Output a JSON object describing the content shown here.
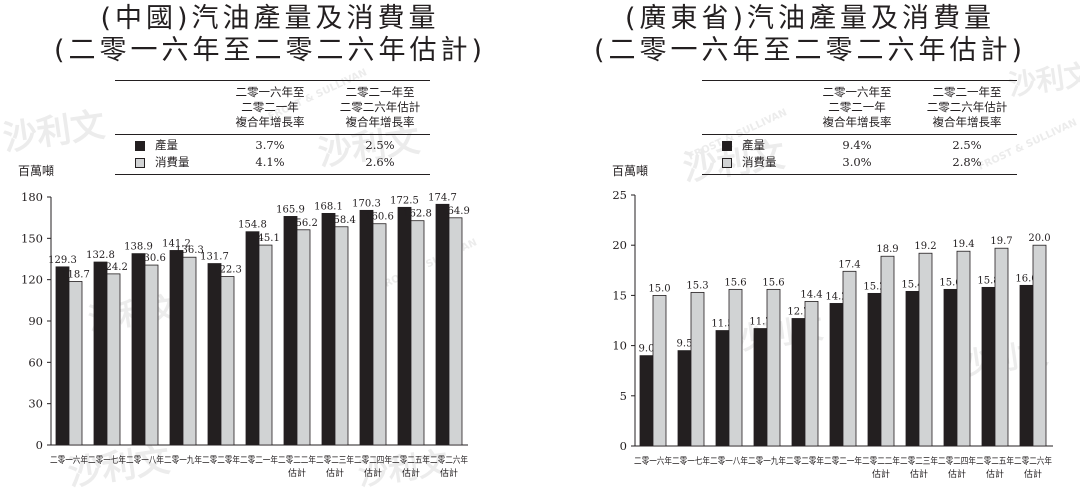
{
  "charts": [
    {
      "title_lines": [
        "(中國)汽油產量及消費量",
        "(二零一六年至二零二六年估計)"
      ],
      "legend_headers": [
        [
          "二零一六年至",
          "二零二一年",
          "複合年增長率"
        ],
        [
          "二零二一年至",
          "二零二六年估計",
          "複合年增長率"
        ]
      ],
      "legend_rows": [
        {
          "name": "產量",
          "cagr1": "3.7%",
          "cagr2": "2.5%"
        },
        {
          "name": "消費量",
          "cagr1": "4.1%",
          "cagr2": "2.6%"
        }
      ],
      "unit": "百萬噸"
    },
    {
      "title_lines": [
        "(廣東省)汽油產量及消費量",
        "(二零一六年至二零二六年估計)"
      ],
      "legend_headers": [
        [
          "二零一六年至",
          "二零二一年",
          "複合年增長率"
        ],
        [
          "二零二一年至",
          "二零二六年估計",
          "複合年增長率"
        ]
      ],
      "legend_rows": [
        {
          "name": "產量",
          "cagr1": "9.4%",
          "cagr2": "2.5%"
        },
        {
          "name": "消費量",
          "cagr1": "3.0%",
          "cagr2": "2.8%"
        }
      ],
      "unit": "百萬噸"
    }
  ],
  "colors": {
    "production": "#231f20",
    "consumption": "#d1d3d4",
    "watermark": "#ececec"
  },
  "watermark_text": {
    "logo": "沙利文",
    "brand": "FROST & SULLIVAN"
  },
  "chart_data": [
    {
      "type": "bar",
      "title": "(中國)汽油產量及消費量 (二零一六年至二零二六年估計)",
      "ylabel": "百萬噸",
      "ylim": [
        0,
        180
      ],
      "yticks": [
        0,
        30,
        60,
        90,
        120,
        150,
        180
      ],
      "grid": false,
      "legend": "top",
      "categories": [
        [
          "二零一六年"
        ],
        [
          "二零一七年"
        ],
        [
          "二零一八年"
        ],
        [
          "二零一九年"
        ],
        [
          "二零二零年"
        ],
        [
          "二零二一年"
        ],
        [
          "二零二二年",
          "估計"
        ],
        [
          "二零二三年",
          "估計"
        ],
        [
          "二零二四年",
          "估計"
        ],
        [
          "二零二五年",
          "估計"
        ],
        [
          "二零二六年",
          "估計"
        ]
      ],
      "series": [
        {
          "name": "產量",
          "values": [
            129.3,
            132.8,
            138.9,
            141.2,
            131.7,
            154.8,
            165.9,
            168.1,
            170.3,
            172.5,
            174.7
          ],
          "labels": [
            "129.3",
            "132.8",
            "138.9",
            "141.2",
            "131.7",
            "154.8",
            "165.9",
            "168.1",
            "170.3",
            "172.5",
            "174.7"
          ]
        },
        {
          "name": "消費量",
          "values": [
            118.7,
            124.2,
            130.6,
            136.3,
            122.3,
            145.1,
            156.2,
            158.4,
            160.6,
            162.8,
            164.9
          ],
          "labels": [
            "118.7",
            "124.2",
            "130.6",
            "136.3",
            "122.3",
            "145.1",
            "156.2",
            "158.4",
            "160.6",
            "162.8",
            "164.9"
          ]
        }
      ]
    },
    {
      "type": "bar",
      "title": "(廣東省)汽油產量及消費量 (二零一六年至二零二六年估計)",
      "ylabel": "百萬噸",
      "ylim": [
        0,
        25
      ],
      "yticks": [
        0,
        5,
        10,
        15,
        20,
        25
      ],
      "grid": false,
      "legend": "top",
      "categories": [
        [
          "二零一六年"
        ],
        [
          "二零一七年"
        ],
        [
          "二零一八年"
        ],
        [
          "二零一九年"
        ],
        [
          "二零二零年"
        ],
        [
          "二零二一年"
        ],
        [
          "二零二二年",
          "估計"
        ],
        [
          "二零二三年",
          "估計"
        ],
        [
          "二零二四年",
          "估計"
        ],
        [
          "二零二五年",
          "估計"
        ],
        [
          "二零二六年",
          "估計"
        ]
      ],
      "series": [
        {
          "name": "產量",
          "values": [
            9.0,
            9.5,
            11.5,
            11.7,
            12.7,
            14.2,
            15.2,
            15.4,
            15.6,
            15.8,
            16.0
          ],
          "labels": [
            "9.0",
            "9.5",
            "11.5",
            "11.7",
            "12.7",
            "14.2",
            "15.2",
            "15.4",
            "15.6",
            "15.8",
            "16.0"
          ]
        },
        {
          "name": "消費量",
          "values": [
            15.0,
            15.3,
            15.6,
            15.6,
            14.4,
            17.4,
            18.9,
            19.2,
            19.4,
            19.7,
            20.0
          ],
          "labels": [
            "15.0",
            "15.3",
            "15.6",
            "15.6",
            "14.4",
            "17.4",
            "18.9",
            "19.2",
            "19.4",
            "19.7",
            "20.0"
          ]
        }
      ]
    }
  ]
}
